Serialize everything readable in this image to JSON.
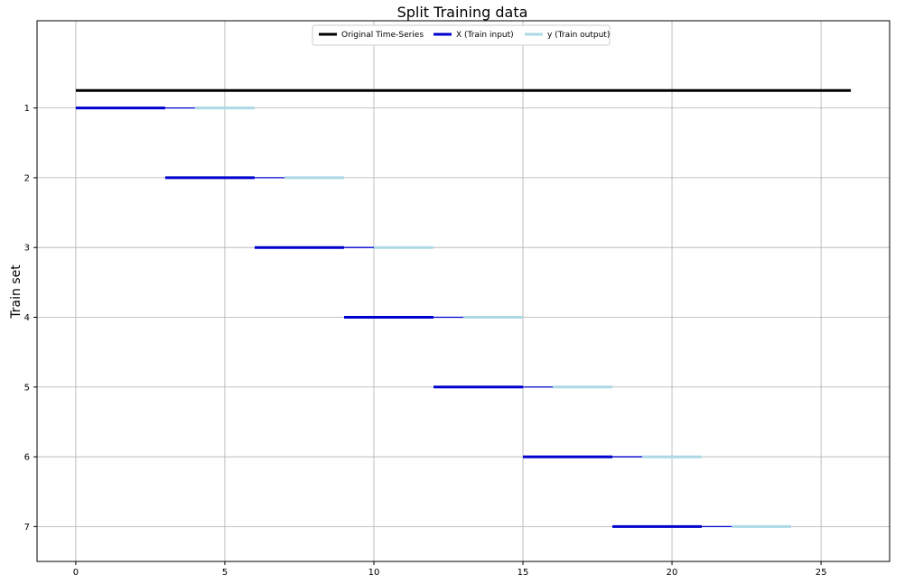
{
  "chart_data": {
    "type": "line",
    "title": "Split Training data",
    "xlabel": "",
    "ylabel": "Train set",
    "xlim": [
      -1.3,
      27.3
    ],
    "ylim": [
      7.5,
      -0.25
    ],
    "x_ticks": [
      0,
      5,
      10,
      15,
      20,
      25
    ],
    "y_ticks": [
      1,
      2,
      3,
      4,
      5,
      6,
      7
    ],
    "grid": true,
    "legend_position": "top-center",
    "legend": [
      {
        "label": "Original Time-Series",
        "color": "#000000",
        "width": 3
      },
      {
        "label": "X (Train input)",
        "color": "#0000cd",
        "width": 3
      },
      {
        "label": "y (Train output)",
        "color": "#add8e6",
        "width": 3
      }
    ],
    "original_series": {
      "x_start": 0,
      "x_end": 26,
      "y": 0.75,
      "color": "#000000"
    },
    "train_sets": [
      {
        "set": 1,
        "x_start": 0,
        "x_end": 3,
        "gap_end": 4,
        "y_end": 6
      },
      {
        "set": 2,
        "x_start": 3,
        "x_end": 6,
        "gap_end": 7,
        "y_end": 9
      },
      {
        "set": 3,
        "x_start": 6,
        "x_end": 9,
        "gap_end": 10,
        "y_end": 12
      },
      {
        "set": 4,
        "x_start": 9,
        "x_end": 12,
        "gap_end": 13,
        "y_end": 15
      },
      {
        "set": 5,
        "x_start": 12,
        "x_end": 15,
        "gap_end": 16,
        "y_end": 18
      },
      {
        "set": 6,
        "x_start": 15,
        "x_end": 18,
        "gap_end": 19,
        "y_end": 21
      },
      {
        "set": 7,
        "x_start": 18,
        "x_end": 21,
        "gap_end": 22,
        "y_end": 24
      }
    ],
    "colors": {
      "x_input": "#0000cd",
      "y_output": "#add8e6",
      "original": "#000000",
      "grid": "#b0b0b0"
    }
  }
}
